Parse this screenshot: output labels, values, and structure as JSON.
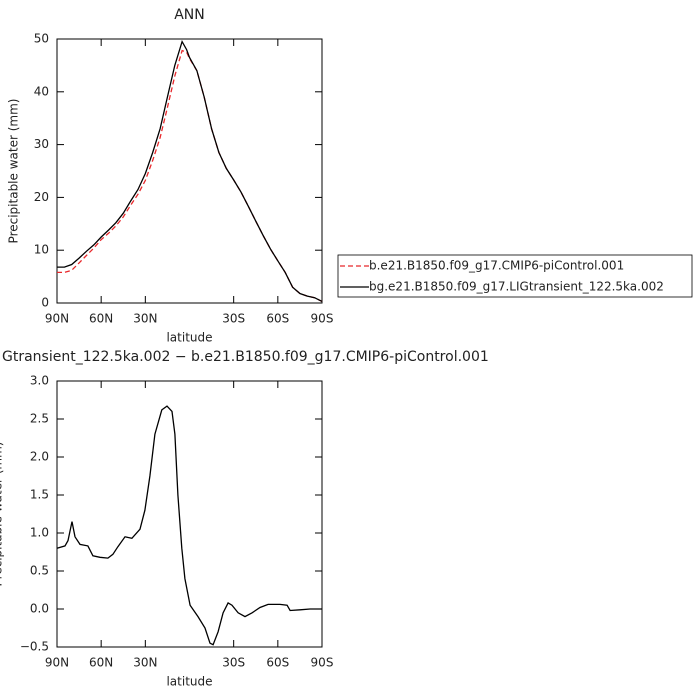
{
  "chart_data": [
    {
      "type": "line",
      "title": "ANN",
      "xlabel": "latitude",
      "ylabel": "Precipitable water (mm)",
      "x": [
        90,
        85,
        80,
        75,
        70,
        65,
        60,
        55,
        50,
        45,
        40,
        35,
        30,
        25,
        20,
        15,
        10,
        5,
        2,
        0,
        -5,
        -10,
        -15,
        -20,
        -25,
        -30,
        -35,
        -40,
        -45,
        -50,
        -55,
        -60,
        -65,
        -70,
        -75,
        -80,
        -85,
        -90
      ],
      "series": [
        {
          "name": "b.e21.B1850.f09_g17.CMIP6-piControl.001",
          "color": "#e8282b",
          "linestyle": "dashed",
          "values": [
            5.8,
            5.8,
            6.2,
            7.6,
            9.0,
            10.4,
            12.0,
            13.2,
            14.6,
            16.3,
            18.5,
            20.6,
            23.2,
            27,
            31.3,
            37,
            43,
            47.8,
            47.5,
            46.3,
            44,
            39,
            33,
            28.5,
            25.5,
            23.3,
            21,
            18.3,
            15.5,
            12.8,
            10.2,
            8.0,
            5.8,
            3.0,
            1.8,
            1.3,
            1.0,
            0.3
          ]
        },
        {
          "name": "bg.e21.B1850.f09_g17.LIGtransient_122.5ka.002",
          "color": "#000000",
          "linestyle": "solid",
          "values": [
            6.8,
            6.8,
            7.3,
            8.5,
            9.8,
            11.0,
            12.5,
            13.8,
            15.2,
            17.0,
            19.3,
            21.5,
            24.5,
            28.5,
            33,
            39,
            45,
            49.5,
            48,
            46.5,
            44,
            39,
            33,
            28.5,
            25.5,
            23.3,
            21,
            18.3,
            15.5,
            12.8,
            10.2,
            8.0,
            5.8,
            3.0,
            1.8,
            1.3,
            1.0,
            0.3
          ]
        }
      ],
      "xlim": [
        90,
        -90
      ],
      "ylim": [
        0,
        50
      ],
      "xticks": [
        {
          "value": 90,
          "label": "90N"
        },
        {
          "value": 60,
          "label": "60N"
        },
        {
          "value": 30,
          "label": "30N"
        },
        {
          "value": -30,
          "label": "30S"
        },
        {
          "value": -60,
          "label": "60S"
        },
        {
          "value": -90,
          "label": "90S"
        }
      ],
      "yticks": [
        0,
        10,
        20,
        30,
        40,
        50
      ],
      "legend": "right"
    },
    {
      "type": "line",
      "title": "Gtransient_122.5ka.002 − b.e21.B1850.f09_g17.CMIP6-piControl.001",
      "xlabel": "latitude",
      "ylabel": "Precipitable water (mm)",
      "x": [
        90,
        84.6,
        82.5,
        79.8,
        77.8,
        74.4,
        69,
        65.6,
        60.8,
        55.4,
        52,
        48.6,
        43.8,
        39.1,
        33.6,
        30.3,
        26.9,
        23.5,
        18.8,
        15.3,
        11.9,
        9.9,
        7.9,
        5.2,
        3.1,
        -0.4,
        -5.8,
        -10.5,
        -13.9,
        -16,
        -19.4,
        -22.8,
        -26.2,
        -28.9,
        -33,
        -37.7,
        -42.5,
        -47.9,
        -53.4,
        -61.5,
        -66.3,
        -68.3,
        -75.1,
        -81.9,
        -90
      ],
      "series": [
        {
          "color": "#000000",
          "linestyle": "solid",
          "values": [
            0.8,
            0.83,
            0.9,
            1.15,
            0.95,
            0.85,
            0.83,
            0.7,
            0.68,
            0.67,
            0.72,
            0.82,
            0.95,
            0.93,
            1.05,
            1.3,
            1.75,
            2.3,
            2.62,
            2.67,
            2.6,
            2.3,
            1.5,
            0.8,
            0.4,
            0.05,
            -0.1,
            -0.25,
            -0.45,
            -0.47,
            -0.3,
            -0.05,
            0.08,
            0.05,
            -0.05,
            -0.1,
            -0.05,
            0.02,
            0.06,
            0.06,
            0.05,
            -0.02,
            -0.01,
            0.0,
            0.0
          ]
        }
      ],
      "xlim": [
        90,
        -90
      ],
      "ylim": [
        -0.5,
        3.0
      ],
      "xticks": [
        {
          "value": 90,
          "label": "90N"
        },
        {
          "value": 60,
          "label": "60N"
        },
        {
          "value": 30,
          "label": "30N"
        },
        {
          "value": -30,
          "label": "30S"
        },
        {
          "value": -60,
          "label": "60S"
        },
        {
          "value": -90,
          "label": "90S"
        }
      ],
      "yticks": [
        {
          "value": -0.5,
          "label": "−0.5"
        },
        {
          "value": 0,
          "label": "0.0"
        },
        0.5,
        {
          "value": 1,
          "label": "1.0"
        },
        1.5,
        {
          "value": 2,
          "label": "2.0"
        },
        2.5,
        {
          "value": 3,
          "label": "3.0"
        }
      ]
    }
  ]
}
